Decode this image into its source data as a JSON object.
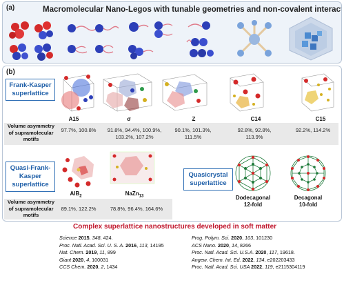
{
  "panel_a": {
    "label": "(a)",
    "title": "Macromolecular Nano-Legos with tunable geometries and non-covalent interactions",
    "icons": [
      "tetrahedral-molecule-icon",
      "giant-surfactant-icon",
      "dendron-cluster-icon",
      "dumbbell-molecule-icon",
      "star-branched-icon",
      "cage-cluster-icon"
    ]
  },
  "panel_b": {
    "label": "(b)",
    "fk_label": "Frank-Kasper superlattice",
    "row_label": "Volume asymmetry of supramolecular motifs",
    "fk_phases": [
      {
        "name": "A15",
        "values": "97.7%, 100.8%"
      },
      {
        "name": "σ",
        "values": "91.8%, 94.4%, 100.9%, 103.2%, 107.2%"
      },
      {
        "name": "Z",
        "values": "90.1%, 101.3%, 111.5%"
      },
      {
        "name": "C14",
        "values": "92.8%, 92.8%, 113.9%"
      },
      {
        "name": "C15",
        "values": "92.2%, 114.2%"
      }
    ],
    "qfk_label": "Quasi-Frank-Kasper superlattice",
    "qfk_phases": [
      {
        "name": "AlB2",
        "base": "AlB",
        "sub": "2",
        "values": "89.1%, 122.2%"
      },
      {
        "name": "NaZn13",
        "base": "NaZn",
        "sub": "13",
        "values": "78.8%, 96.4%, 164.6%"
      }
    ],
    "qc_label": "Quasicrystal superlattice",
    "qc_phases": [
      {
        "name": "Dodecagonal 12-fold",
        "line1": "Dodecagonal",
        "line2": "12-fold"
      },
      {
        "name": "Decagonal 10-fold",
        "line1": "Decagonal",
        "line2": "10-fold"
      }
    ]
  },
  "footer": {
    "title": "Complex superlattice nanostructures developed in soft matter",
    "refs_left": [
      {
        "journal": "Science",
        "year": "2015",
        "vol": "348",
        "page": "424."
      },
      {
        "journal": "Proc. Natl. Acad. Sci. U. S. A.",
        "year": "2016",
        "vol": "113",
        "page": "14195"
      },
      {
        "journal": "Nat. Chem.",
        "year": "2019",
        "vol": "11",
        "page": "899"
      },
      {
        "journal": "Giant",
        "year": "2020",
        "vol": "4",
        "page": "100031"
      },
      {
        "journal": "CCS Chem.",
        "year": "2020",
        "vol": "2",
        "page": "1434"
      }
    ],
    "refs_right": [
      {
        "journal": "Prog. Polym. Sci.",
        "year": "2020",
        "vol": "103",
        "page": "101230"
      },
      {
        "journal": "ACS Nano.",
        "year": "2020",
        "vol": "14",
        "page": "8266"
      },
      {
        "journal": "Proc. Natl. Acad. Sci. U.S.A.",
        "year": "2020",
        "vol": "117",
        "page": "19618."
      },
      {
        "journal": "Angew. Chem. Int. Ed.",
        "year": "2022",
        "vol": "134",
        "page": "e202203433"
      },
      {
        "journal": "Proc. Natl. Acad. Sci. USA",
        "year": "2022",
        "vol": "119",
        "page": "e2115304119"
      }
    ]
  },
  "colors": {
    "red": "#d42a2a",
    "blue": "#2d3fb8",
    "accent": "#2f6fb5",
    "title_red": "#c0162c"
  }
}
